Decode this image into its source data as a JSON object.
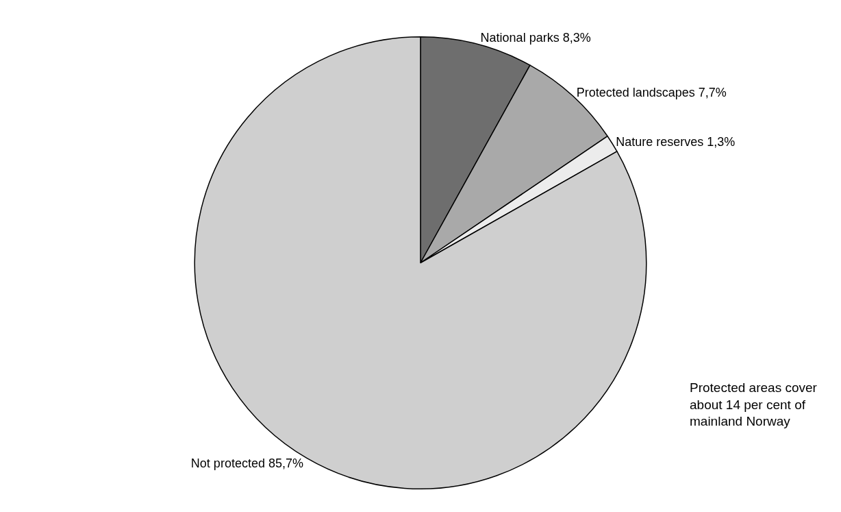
{
  "chart_data": {
    "type": "pie",
    "categories": [
      "National parks",
      "Protected landscapes",
      "Nature reserves",
      "Not protected"
    ],
    "values": [
      8.3,
      7.7,
      1.3,
      85.7
    ],
    "value_labels": [
      "8,3%",
      "7,7%",
      "1,3%",
      "85,7%"
    ],
    "colors": [
      "#6e6e6e",
      "#a9a9a9",
      "#ececec",
      "#cfcfcf"
    ],
    "legend": false,
    "annotations": [
      "Protected areas cover\nabout 14 per cent of\nmainland Norway"
    ]
  }
}
